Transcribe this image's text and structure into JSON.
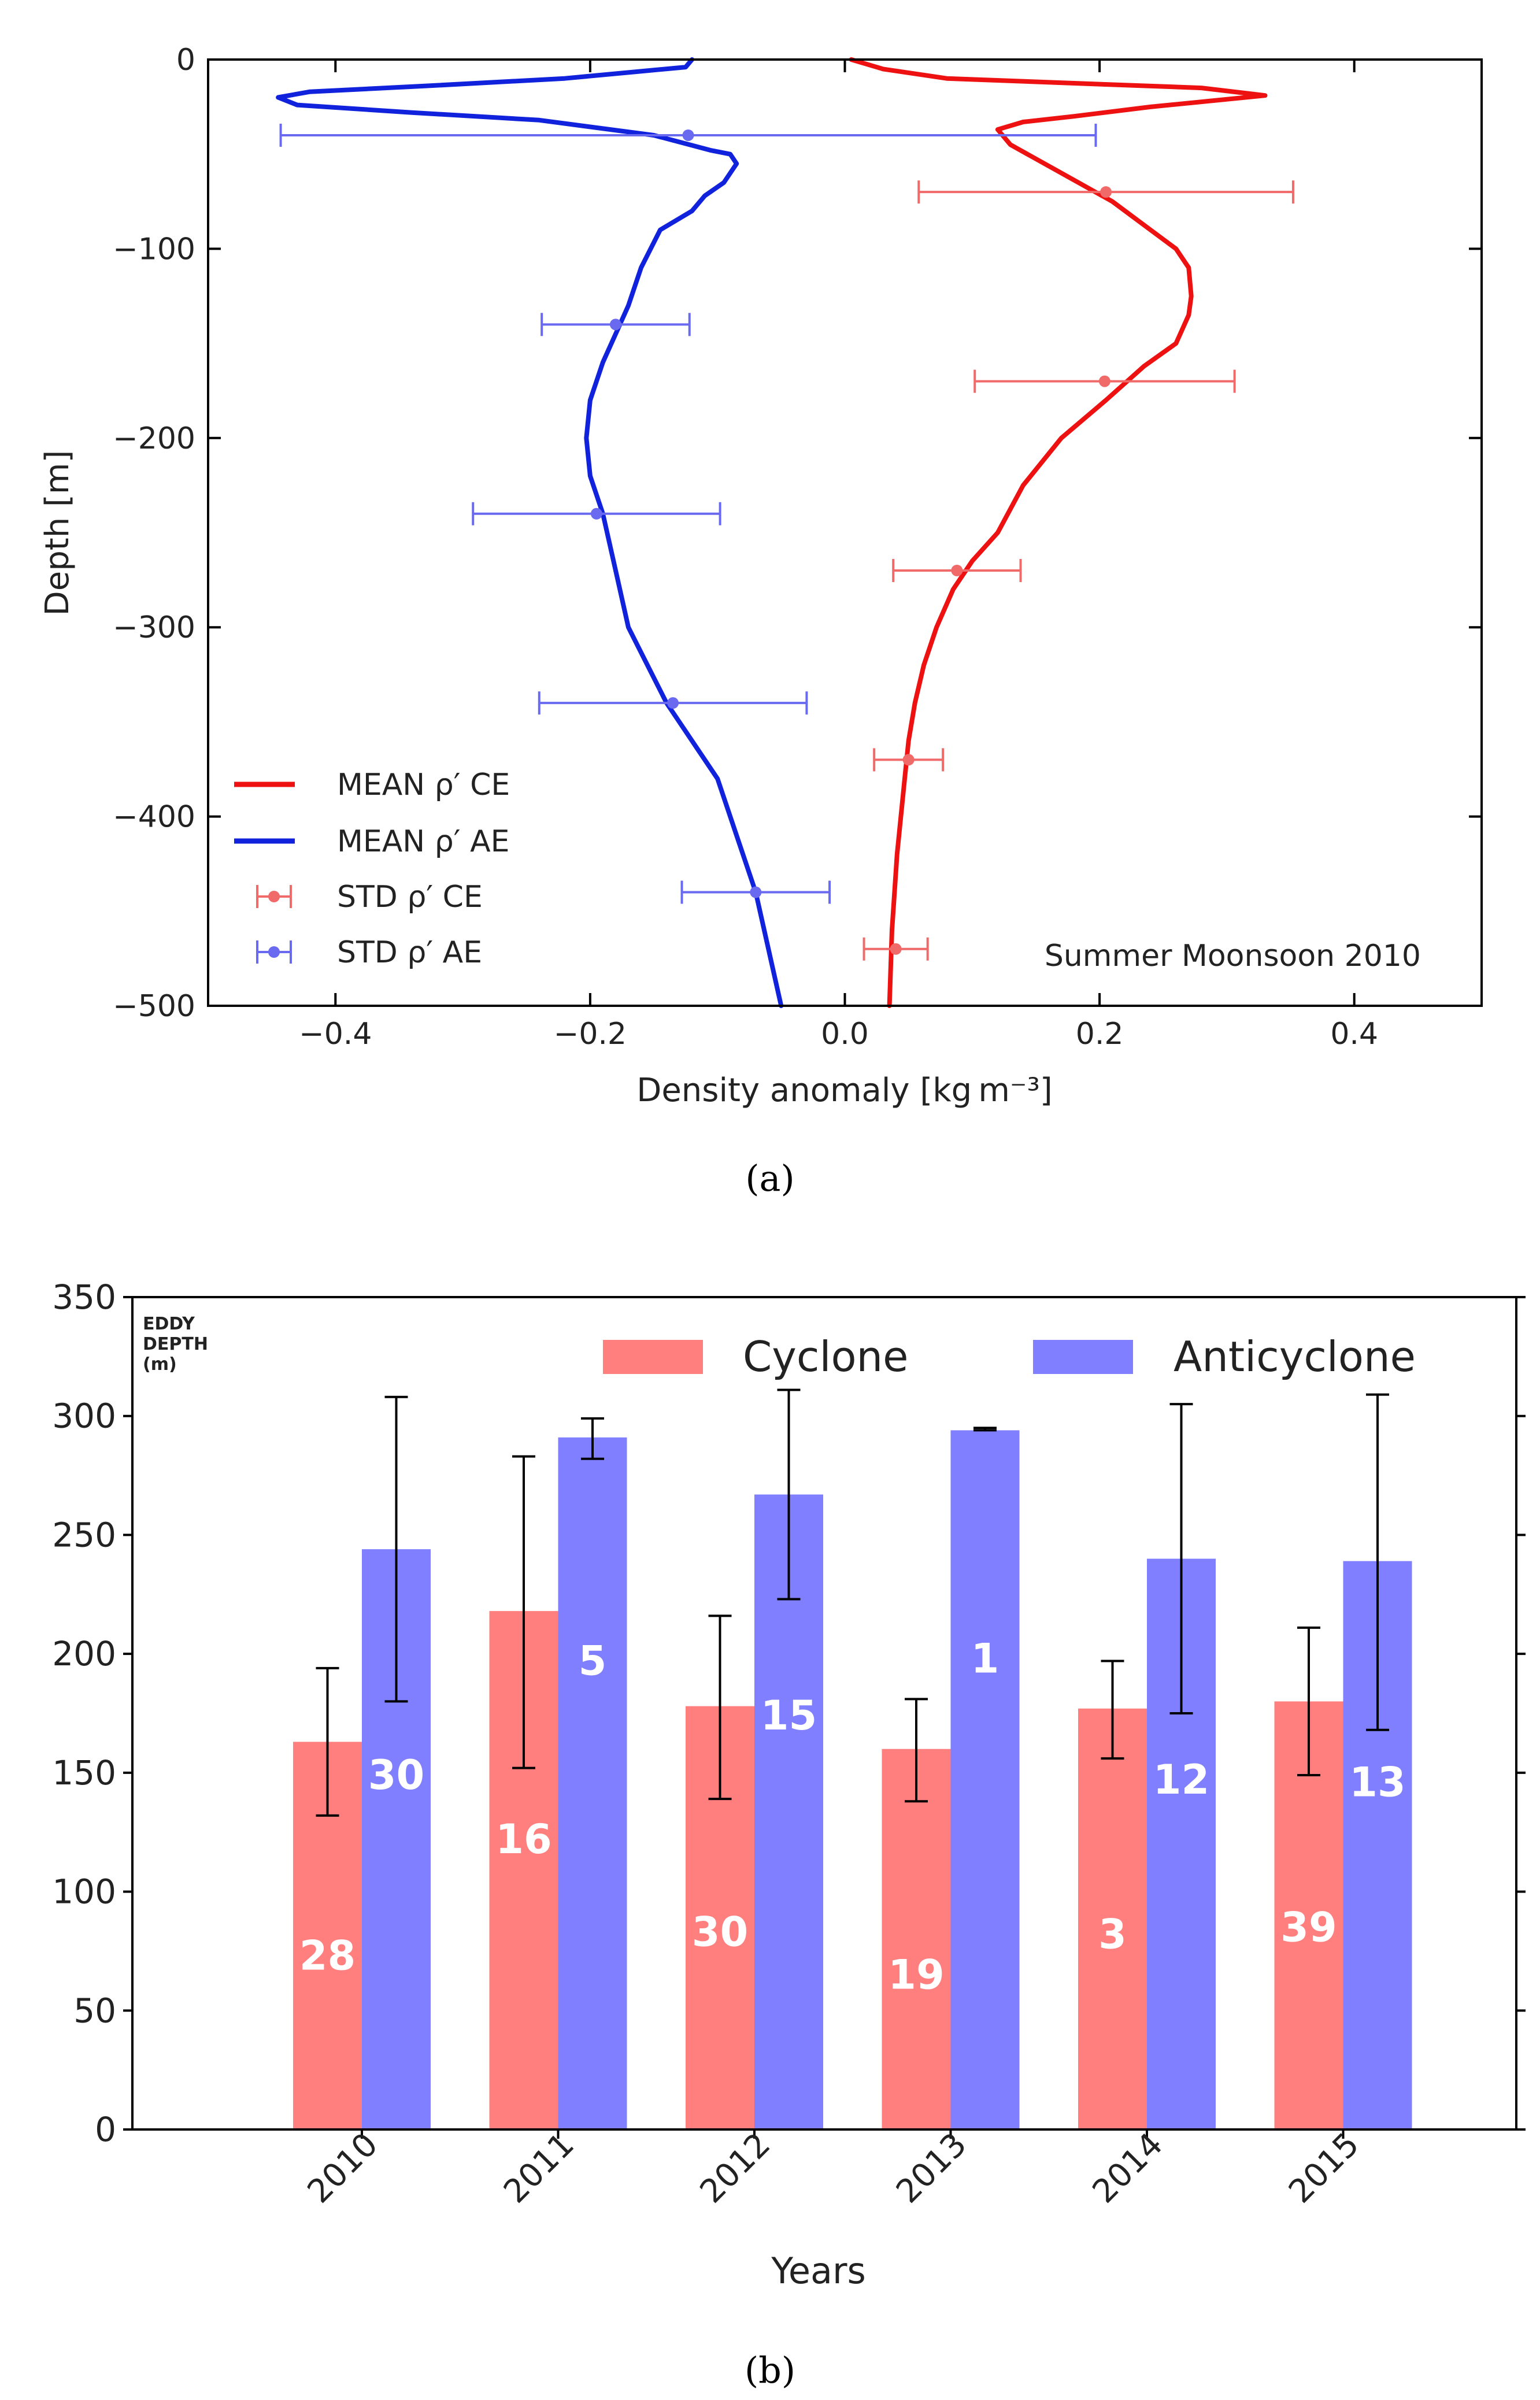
{
  "colors": {
    "ce": "#ee1111",
    "ae": "#1122dd",
    "ce_err": "#f06a6a",
    "ae_err": "#6a6af0",
    "cyclone_bar": "#ff7f7f",
    "anticyclone_bar": "#7f7fff"
  },
  "chart_data": [
    {
      "type": "line",
      "panel_label": "(a)",
      "title": "",
      "xlabel": "Density anomaly [kg m⁻³]",
      "ylabel": "Depth [m]",
      "xlim": [
        -0.5,
        0.5
      ],
      "ylim": [
        -500,
        0
      ],
      "xticks": [
        -0.4,
        -0.2,
        0.0,
        0.2,
        0.4
      ],
      "xtick_labels": [
        "−0.4",
        "−0.2",
        "0.0",
        "0.2",
        "0.4"
      ],
      "yticks": [
        0,
        -100,
        -200,
        -300,
        -400,
        -500
      ],
      "ytick_labels": [
        "0",
        "−100",
        "−200",
        "−300",
        "−400",
        "−500"
      ],
      "annotation": "Summer Moonsoon 2010",
      "legend_position": "lower-left",
      "legend": [
        "MEAN ρ′ CE",
        "MEAN ρ′ AE",
        "STD ρ′ CE",
        "STD ρ′ AE"
      ],
      "series": [
        {
          "name": "MEAN ρ′ CE",
          "x": [
            0.005,
            0.03,
            0.08,
            0.2,
            0.28,
            0.33,
            0.24,
            0.18,
            0.14,
            0.12,
            0.13,
            0.17,
            0.21,
            0.24,
            0.26,
            0.27,
            0.272,
            0.27,
            0.26,
            0.235,
            0.205,
            0.17,
            0.14,
            0.12,
            0.1,
            0.085,
            0.072,
            0.062,
            0.055,
            0.05,
            0.047,
            0.044,
            0.041,
            0.039,
            0.037,
            0.035
          ],
          "y": [
            0,
            -5,
            -10,
            -13,
            -15,
            -19,
            -25,
            -30,
            -33,
            -37,
            -45,
            -60,
            -75,
            -90,
            -100,
            -110,
            -125,
            -135,
            -150,
            -162,
            -180,
            -200,
            -225,
            -250,
            -265,
            -280,
            -300,
            -320,
            -340,
            -360,
            -380,
            -400,
            -420,
            -440,
            -460,
            -500
          ]
        },
        {
          "name": "MEAN ρ′ AE",
          "x": [
            -0.12,
            -0.125,
            -0.22,
            -0.33,
            -0.42,
            -0.445,
            -0.43,
            -0.34,
            -0.24,
            -0.15,
            -0.105,
            -0.09,
            -0.085,
            -0.095,
            -0.11,
            -0.12,
            -0.145,
            -0.16,
            -0.17,
            -0.18,
            -0.19,
            -0.2,
            -0.203,
            -0.2,
            -0.19,
            -0.18,
            -0.17,
            -0.155,
            -0.14,
            -0.12,
            -0.1,
            -0.085,
            -0.07,
            -0.06,
            -0.05
          ],
          "y": [
            0,
            -4,
            -10,
            -14,
            -17,
            -20,
            -24,
            -28,
            -32,
            -40,
            -48,
            -50,
            -55,
            -65,
            -72,
            -80,
            -90,
            -110,
            -130,
            -145,
            -160,
            -180,
            -200,
            -220,
            -240,
            -270,
            -300,
            -320,
            -340,
            -360,
            -380,
            -410,
            -440,
            -470,
            -500
          ]
        },
        {
          "name": "STD ρ′ CE",
          "x": [
            0.205,
            0.204,
            0.088,
            0.05,
            0.04
          ],
          "y": [
            -70,
            -170,
            -270,
            -370,
            -470
          ],
          "err": [
            0.147,
            0.102,
            0.05,
            0.027,
            0.025
          ]
        },
        {
          "name": "STD ρ′ AE",
          "x": [
            -0.123,
            -0.18,
            -0.195,
            -0.135,
            -0.07
          ],
          "y": [
            -40,
            -140,
            -240,
            -340,
            -440
          ],
          "err": [
            0.32,
            0.058,
            0.097,
            0.105,
            0.058
          ]
        }
      ]
    },
    {
      "type": "bar",
      "panel_label": "(b)",
      "title": "",
      "xlabel": "Years",
      "ylabel": "",
      "corner_label": [
        "EDDY",
        "DEPTH",
        "(m)"
      ],
      "ylim": [
        0,
        350
      ],
      "yticks": [
        0,
        50,
        100,
        150,
        200,
        250,
        300,
        350
      ],
      "categories": [
        "2010",
        "2011",
        "2012",
        "2013",
        "2014",
        "2015"
      ],
      "legend_position": "top-right",
      "series": [
        {
          "name": "Cyclone",
          "values": [
            163,
            218,
            178,
            160,
            177,
            180
          ],
          "err_low": [
            132,
            152,
            139,
            138,
            156,
            149
          ],
          "err_high": [
            194,
            283,
            216,
            181,
            197,
            211
          ],
          "counts": [
            "28",
            "16",
            "30",
            "19",
            "3",
            "39"
          ],
          "count_y": [
            73,
            122,
            83,
            65,
            82,
            85
          ]
        },
        {
          "name": "Anticyclone",
          "values": [
            244,
            291,
            267,
            294,
            240,
            239
          ],
          "err_low": [
            180,
            282,
            223,
            294,
            175,
            168
          ],
          "err_high": [
            308,
            299,
            311,
            295,
            305,
            309
          ],
          "counts": [
            "30",
            "5",
            "15",
            "1",
            "12",
            "13"
          ],
          "count_y": [
            149,
            197,
            174,
            198,
            147,
            146
          ]
        }
      ]
    }
  ]
}
